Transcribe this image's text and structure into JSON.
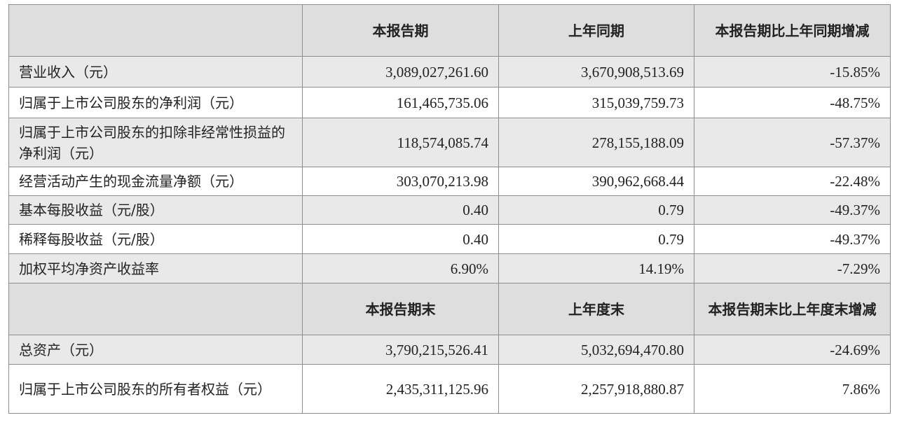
{
  "header1": [
    "",
    "本报告期",
    "上年同期",
    "本报告期比上年同期增减"
  ],
  "header2": [
    "",
    "本报告期末",
    "上年度末",
    "本报告期末比上年度末增减"
  ],
  "rows1": [
    [
      "营业收入（元）",
      "3,089,027,261.60",
      "3,670,908,513.69",
      "-15.85%"
    ],
    [
      "归属于上市公司股东的净利润（元）",
      "161,465,735.06",
      "315,039,759.73",
      "-48.75%"
    ],
    [
      "归属于上市公司股东的扣除非经常性损益的净利润（元）",
      "118,574,085.74",
      "278,155,188.09",
      "-57.37%"
    ],
    [
      "经营活动产生的现金流量净额（元）",
      "303,070,213.98",
      "390,962,668.44",
      "-22.48%"
    ],
    [
      "基本每股收益（元/股）",
      "0.40",
      "0.79",
      "-49.37%"
    ],
    [
      "稀释每股收益（元/股）",
      "0.40",
      "0.79",
      "-49.37%"
    ],
    [
      "加权平均净资产收益率",
      "6.90%",
      "14.19%",
      "-7.29%"
    ]
  ],
  "rows2": [
    [
      "总资产（元）",
      "3,790,215,526.41",
      "5,032,694,470.80",
      "-24.69%"
    ],
    [
      "归属于上市公司股东的所有者权益（元）",
      "2,435,311,125.96",
      "2,257,918,880.87",
      "7.86%"
    ]
  ]
}
